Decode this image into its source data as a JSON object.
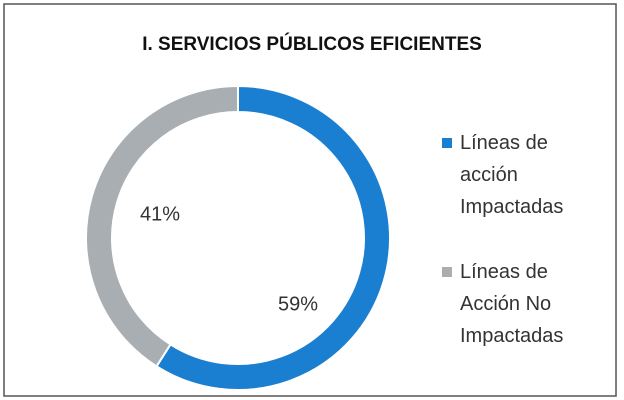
{
  "chart_data": {
    "type": "donut",
    "title": "I. SERVICIOS PÚBLICOS EFICIENTES",
    "categories": [
      "Líneas de acción Impactadas",
      "Líneas de Acción No Impactadas"
    ],
    "values": [
      59,
      41
    ],
    "value_labels": [
      "59%",
      "41%"
    ],
    "colors": [
      "#1b7fd1",
      "#a9aeb3"
    ]
  }
}
